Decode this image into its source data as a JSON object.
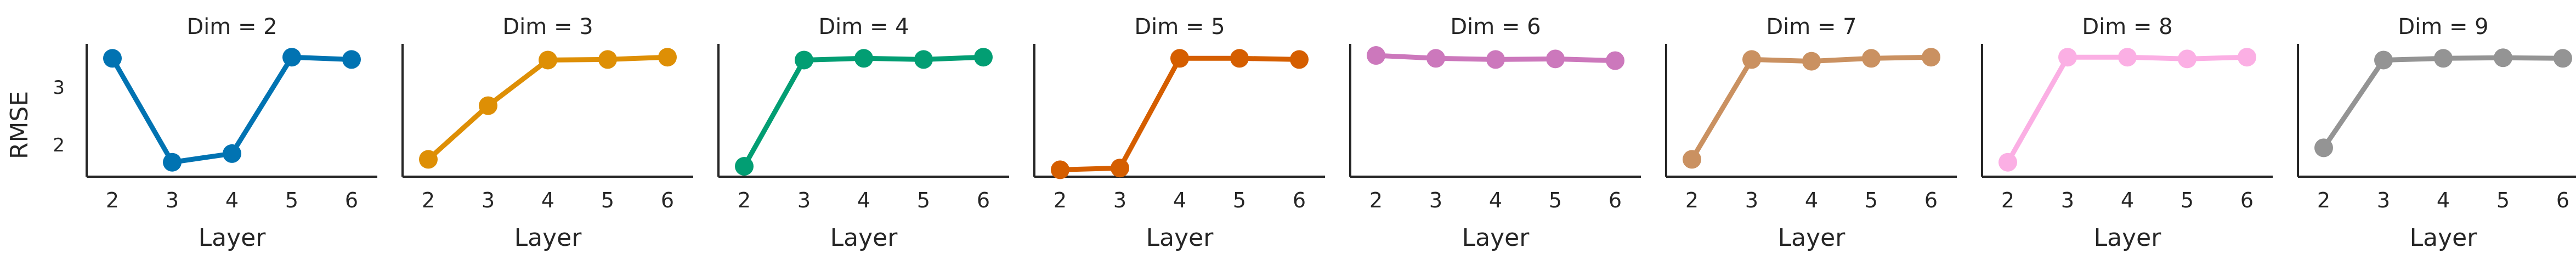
{
  "y_axis_label": "RMSE",
  "chart_data": {
    "type": "line",
    "facet_title_prefix": "Dim = ",
    "xlabel": "Layer",
    "ylabel": "RMSE",
    "x": [
      2,
      3,
      4,
      5,
      6
    ],
    "ylim": [
      1.45,
      3.75
    ],
    "yticks": [
      2,
      3
    ],
    "grid": false,
    "panels": [
      {
        "dim": 2,
        "title": "Dim = 2",
        "color": "#0173b2",
        "values": [
          3.5,
          1.7,
          1.85,
          3.52,
          3.48
        ]
      },
      {
        "dim": 3,
        "title": "Dim = 3",
        "color": "#de8f05",
        "values": [
          1.75,
          2.68,
          3.47,
          3.48,
          3.52
        ]
      },
      {
        "dim": 4,
        "title": "Dim = 4",
        "color": "#029e73",
        "values": [
          1.63,
          3.47,
          3.5,
          3.48,
          3.52
        ]
      },
      {
        "dim": 5,
        "title": "Dim = 5",
        "color": "#d55e00",
        "values": [
          1.57,
          1.6,
          3.5,
          3.5,
          3.48
        ]
      },
      {
        "dim": 6,
        "title": "Dim = 6",
        "color": "#cc78bc",
        "values": [
          3.55,
          3.5,
          3.48,
          3.49,
          3.46
        ]
      },
      {
        "dim": 7,
        "title": "Dim = 7",
        "color": "#ca9161",
        "values": [
          1.75,
          3.48,
          3.45,
          3.5,
          3.52
        ]
      },
      {
        "dim": 8,
        "title": "Dim = 8",
        "color": "#fbafe4",
        "values": [
          1.7,
          3.52,
          3.52,
          3.49,
          3.52
        ]
      },
      {
        "dim": 9,
        "title": "Dim = 9",
        "color": "#949494",
        "values": [
          1.95,
          3.47,
          3.5,
          3.51,
          3.5
        ]
      }
    ]
  }
}
